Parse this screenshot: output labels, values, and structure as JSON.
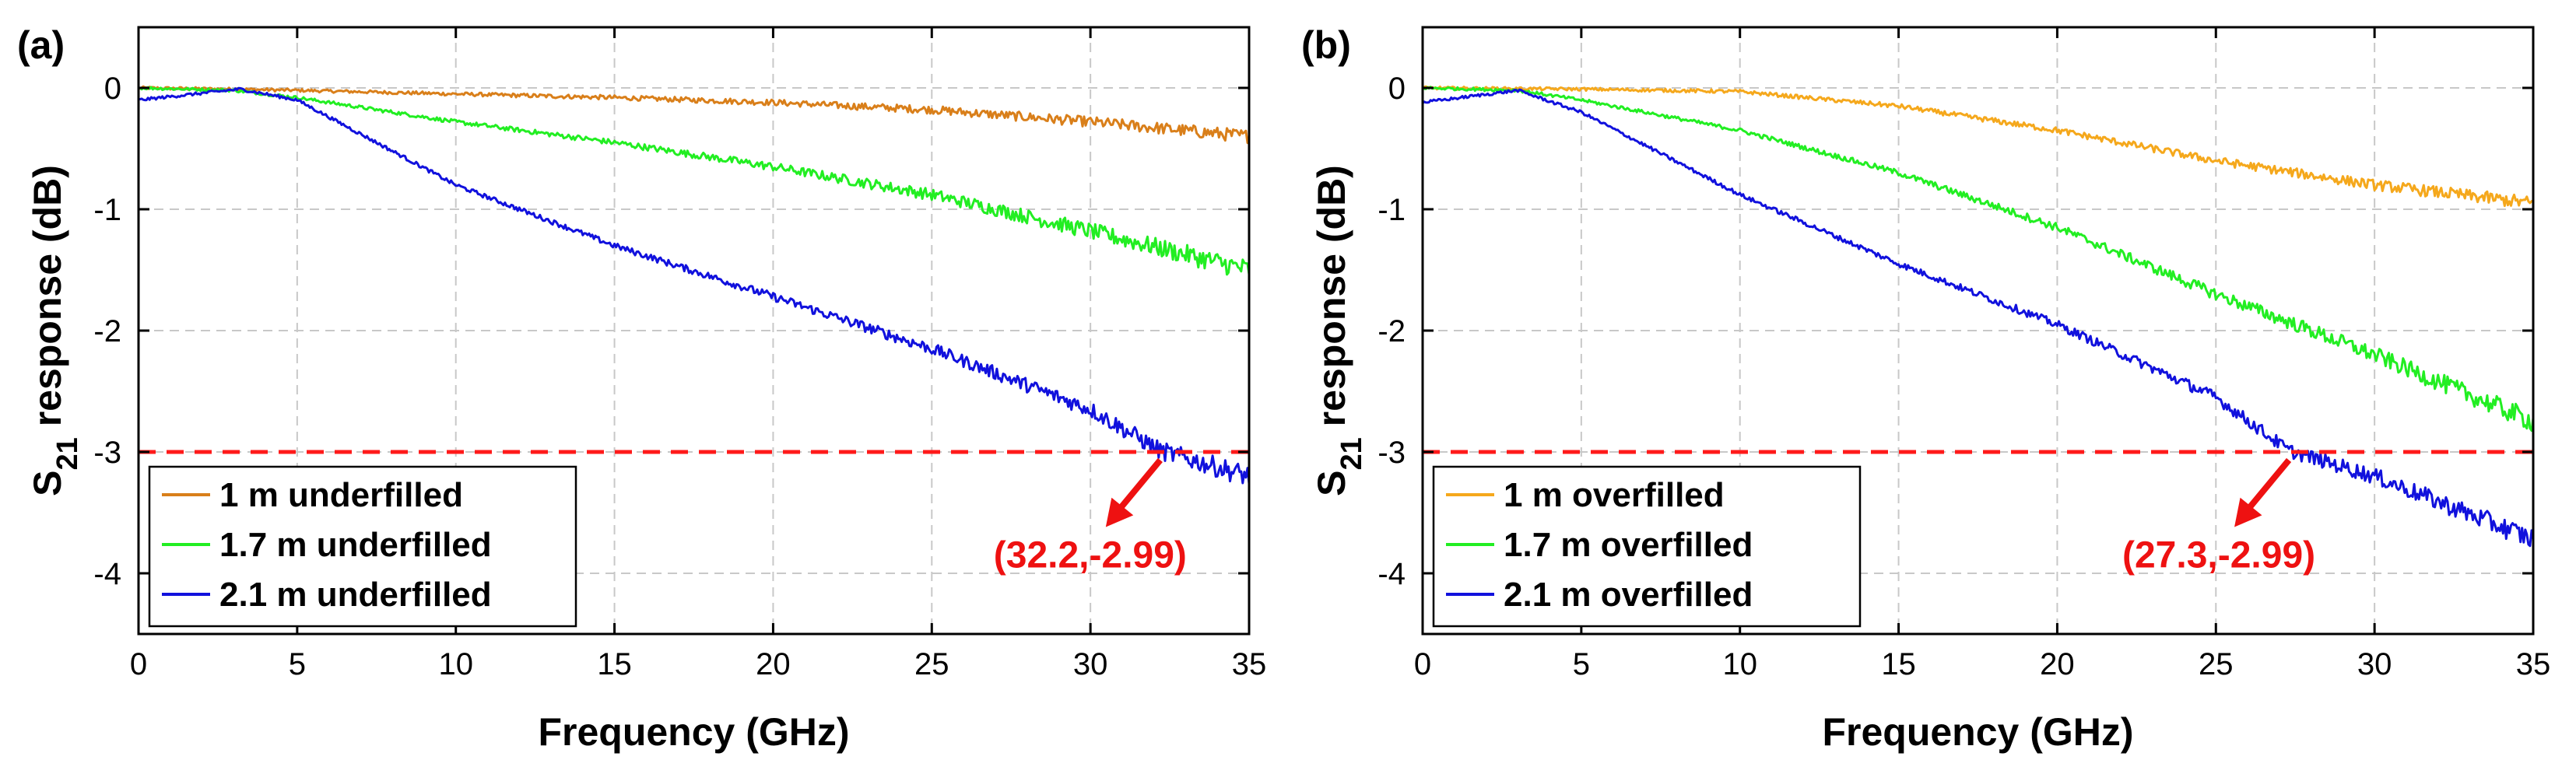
{
  "chart_data": [
    {
      "type": "line",
      "panel_label": "(a)",
      "xlabel": "Frequency (GHz)",
      "ylabel_main": "S",
      "ylabel_sub": "21",
      "ylabel_rest": " response (dB)",
      "xlim": [
        0,
        35
      ],
      "ylim": [
        -4.5,
        0.5
      ],
      "xticks": [
        0,
        5,
        10,
        15,
        20,
        25,
        30,
        35
      ],
      "yticks": [
        0,
        -1,
        -2,
        -3,
        -4
      ],
      "grid": true,
      "legend_position": "bottom-left",
      "threshold": {
        "y": -3,
        "color": "#ff1a1a"
      },
      "annotation": {
        "text": "(32.2,-2.99)",
        "x": 32.2,
        "y": -2.99,
        "color": "#ee1111"
      },
      "series": [
        {
          "name": "1 m underfilled",
          "color": "#d97f1a",
          "points": [
            [
              0,
              0
            ],
            [
              3,
              -0.01
            ],
            [
              5,
              -0.02
            ],
            [
              10,
              -0.05
            ],
            [
              15,
              -0.08
            ],
            [
              20,
              -0.12
            ],
            [
              25,
              -0.18
            ],
            [
              30,
              -0.28
            ],
            [
              35,
              -0.4
            ]
          ]
        },
        {
          "name": "1.7 m underfilled",
          "color": "#22ee22",
          "points": [
            [
              0,
              0
            ],
            [
              3,
              -0.02
            ],
            [
              5,
              -0.08
            ],
            [
              10,
              -0.28
            ],
            [
              15,
              -0.45
            ],
            [
              20,
              -0.65
            ],
            [
              25,
              -0.88
            ],
            [
              30,
              -1.18
            ],
            [
              35,
              -1.5
            ]
          ]
        },
        {
          "name": "2.1 m underfilled",
          "color": "#1111dd",
          "points": [
            [
              0,
              -0.1
            ],
            [
              3.2,
              -0.01
            ],
            [
              5,
              -0.1
            ],
            [
              7.5,
              -0.45
            ],
            [
              10,
              -0.8
            ],
            [
              15,
              -1.3
            ],
            [
              20,
              -1.72
            ],
            [
              25,
              -2.15
            ],
            [
              30,
              -2.65
            ],
            [
              32.2,
              -2.99
            ],
            [
              35,
              -3.2
            ]
          ]
        }
      ]
    },
    {
      "type": "line",
      "panel_label": "(b)",
      "xlabel": "Frequency (GHz)",
      "ylabel_main": "S",
      "ylabel_sub": "21",
      "ylabel_rest": " response (dB)",
      "xlim": [
        0,
        35
      ],
      "ylim": [
        -4.5,
        0.5
      ],
      "xticks": [
        0,
        5,
        10,
        15,
        20,
        25,
        30,
        35
      ],
      "yticks": [
        0,
        -1,
        -2,
        -3,
        -4
      ],
      "grid": true,
      "legend_position": "bottom-left",
      "threshold": {
        "y": -3,
        "color": "#ff1a1a"
      },
      "annotation": {
        "text": "(27.3,-2.99)",
        "x": 27.3,
        "y": -2.99,
        "color": "#ee1111"
      },
      "series": [
        {
          "name": "1 m overfilled",
          "color": "#f5a81c",
          "points": [
            [
              0,
              0
            ],
            [
              5,
              -0.01
            ],
            [
              10,
              -0.03
            ],
            [
              15,
              -0.15
            ],
            [
              20,
              -0.35
            ],
            [
              25,
              -0.6
            ],
            [
              30,
              -0.8
            ],
            [
              35,
              -0.95
            ]
          ]
        },
        {
          "name": "1.7 m overfilled",
          "color": "#22ee22",
          "points": [
            [
              0,
              0
            ],
            [
              3,
              -0.02
            ],
            [
              5,
              -0.1
            ],
            [
              10,
              -0.35
            ],
            [
              15,
              -0.7
            ],
            [
              20,
              -1.15
            ],
            [
              25,
              -1.7
            ],
            [
              30,
              -2.2
            ],
            [
              35,
              -2.75
            ]
          ]
        },
        {
          "name": "2.1 m overfilled",
          "color": "#1111dd",
          "points": [
            [
              0,
              -0.12
            ],
            [
              3,
              -0.02
            ],
            [
              5,
              -0.2
            ],
            [
              10,
              -0.88
            ],
            [
              15,
              -1.45
            ],
            [
              20,
              -1.95
            ],
            [
              25,
              -2.55
            ],
            [
              27.3,
              -2.99
            ],
            [
              30,
              -3.2
            ],
            [
              35,
              -3.72
            ]
          ]
        }
      ]
    }
  ]
}
